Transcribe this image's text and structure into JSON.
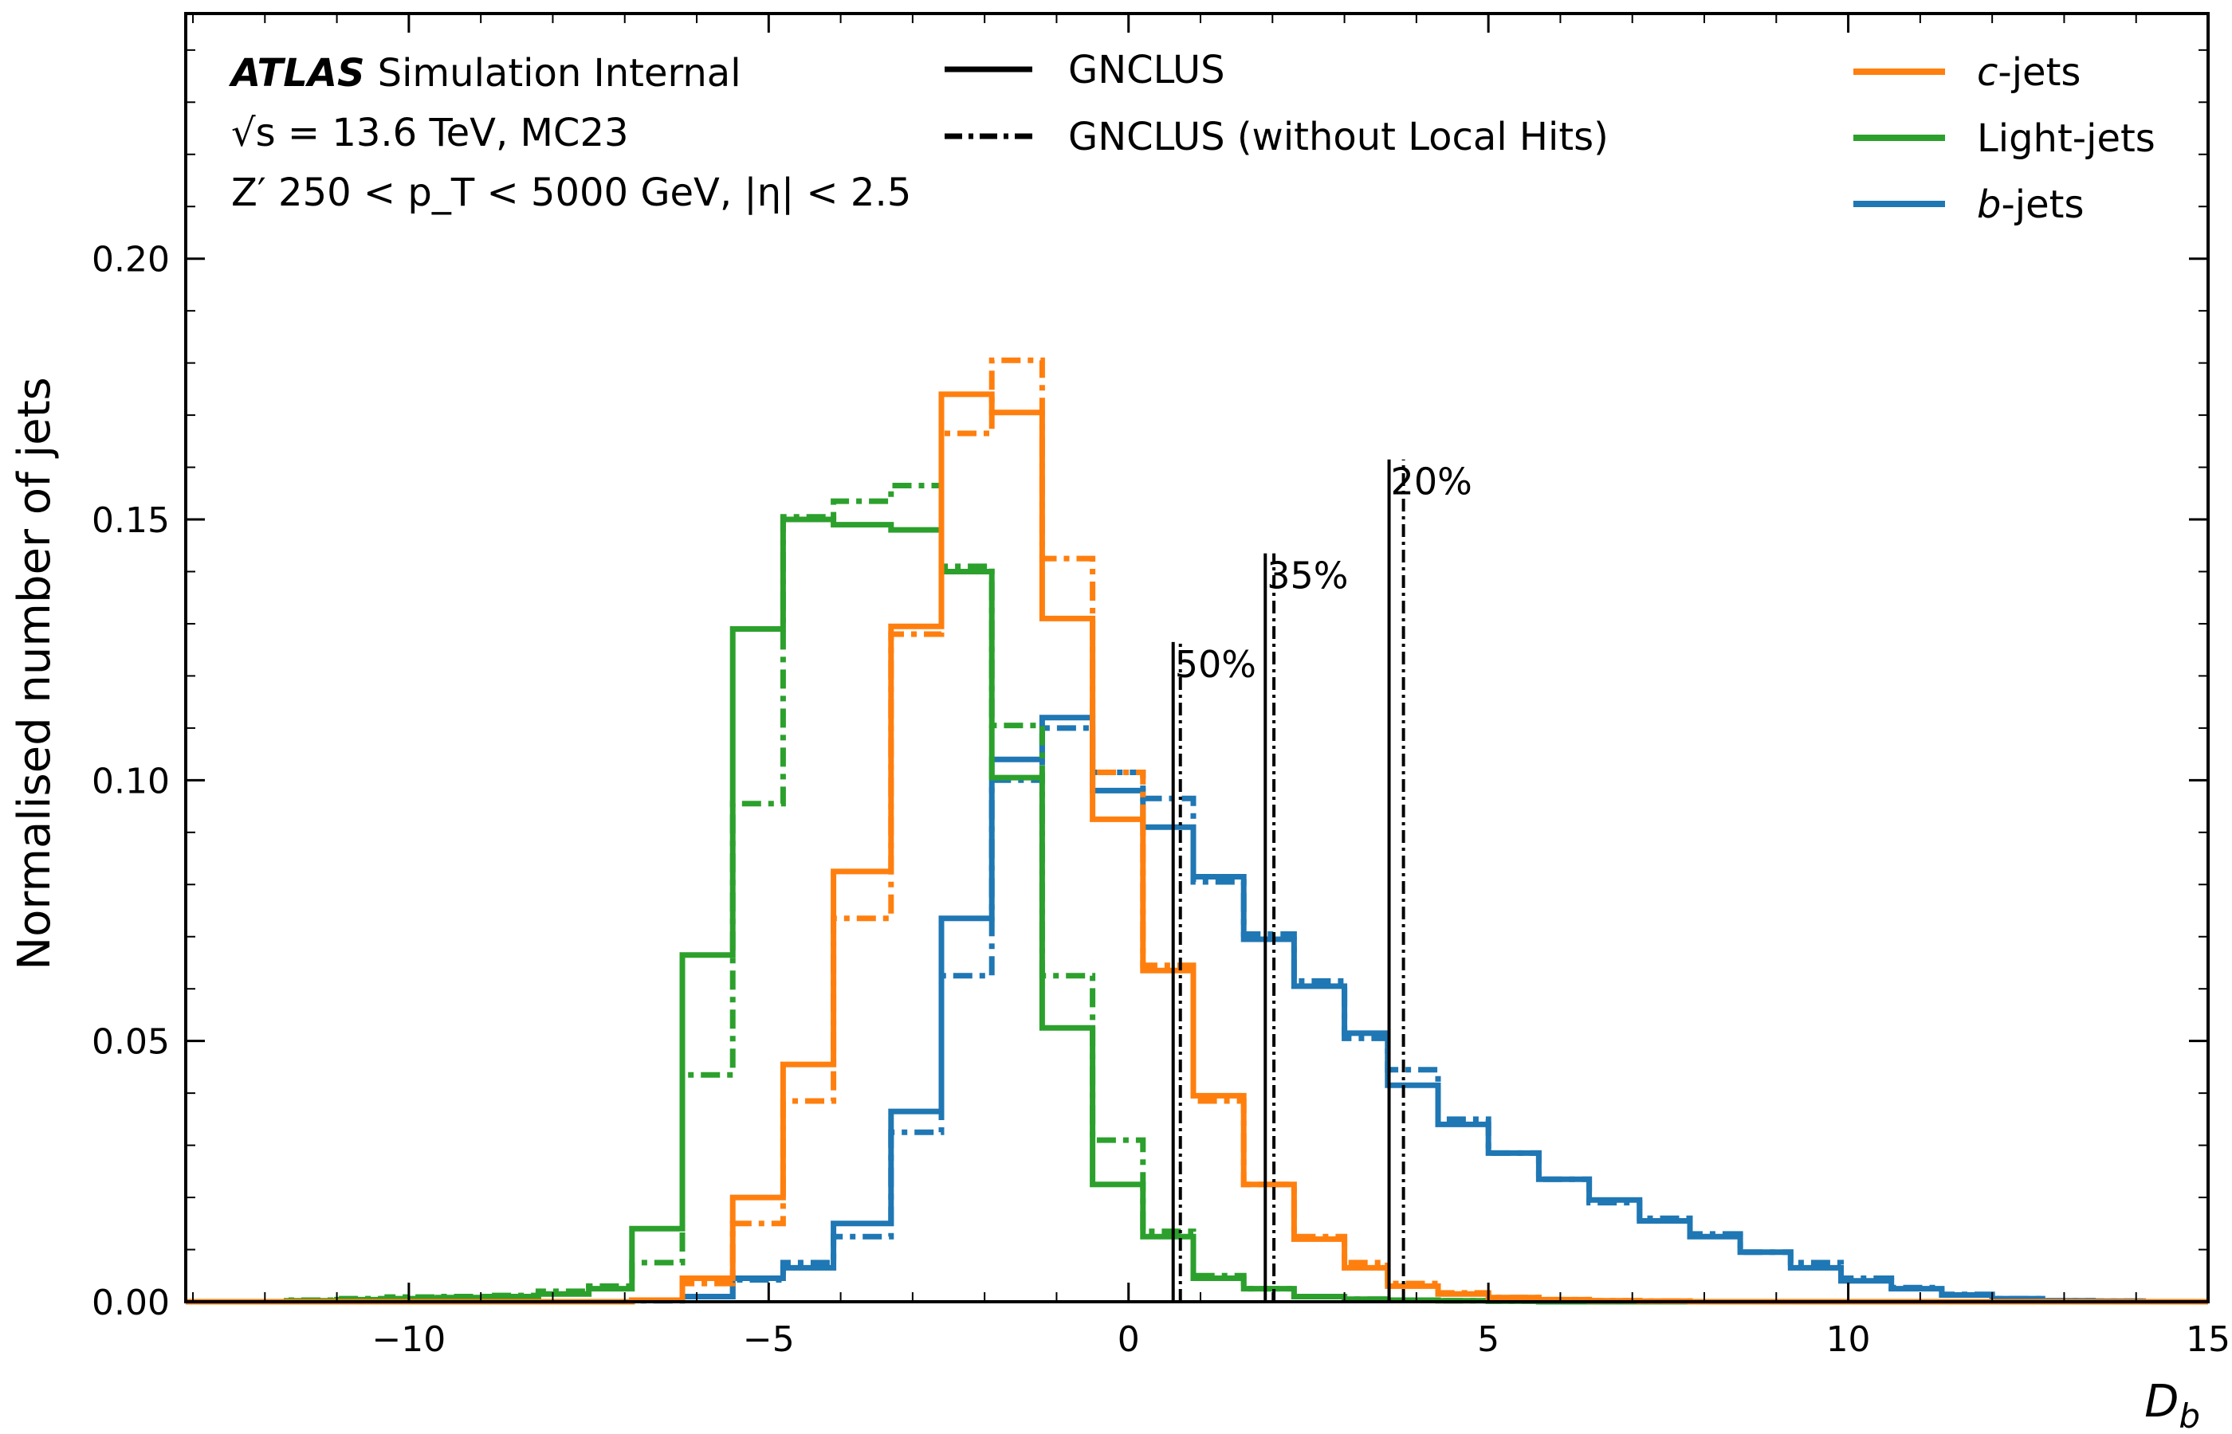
{
  "chart_data": {
    "type": "step-histogram",
    "xlabel_base": "D",
    "xlabel_sub": "b",
    "ylabel": "Normalised number of jets",
    "xlim": [
      -13.1,
      15
    ],
    "ylim": [
      0,
      0.247
    ],
    "xticks": [
      -10,
      -5,
      0,
      5,
      10,
      15
    ],
    "xtick_labels": [
      "−10",
      "−5",
      "0",
      "5",
      "10",
      "15"
    ],
    "yticks": [
      0.0,
      0.05,
      0.1,
      0.15,
      0.2
    ],
    "ytick_labels": [
      "0.00",
      "0.05",
      "0.10",
      "0.15",
      "0.20"
    ],
    "grid": false,
    "annotations": {
      "line1_bold": "ATLAS",
      "line1_rest": "Simulation Internal",
      "line2": "√s = 13.6 TeV, MC23",
      "line3": "Z′ 250 < p_T < 5000 GeV, |η| < 2.5"
    },
    "style_legend": {
      "solid": "GNCLUS",
      "dashdot": "GNCLUS (without Local Hits)"
    },
    "class_legend": [
      {
        "italic": "c",
        "rest": "-jets",
        "color": "#ff7f0e"
      },
      {
        "italic": "",
        "rest": "Light-jets",
        "color": "#2ca02c"
      },
      {
        "italic": "b",
        "rest": "-jets",
        "color": "#1f77b4"
      }
    ],
    "bin_edges": [
      -13.1,
      -12.4,
      -11.7,
      -11.0,
      -10.3,
      -9.6,
      -8.9,
      -8.2,
      -7.5,
      -6.9,
      -6.2,
      -5.5,
      -4.8,
      -4.1,
      -3.3,
      -2.6,
      -1.9,
      -1.2,
      -0.5,
      0.2,
      0.9,
      1.6,
      2.3,
      3.0,
      3.6,
      4.3,
      5.0,
      5.7,
      6.4,
      7.1,
      7.8,
      8.5,
      9.2,
      9.9,
      10.6,
      11.3,
      12.0,
      12.7,
      13.4,
      14.1,
      15.0
    ],
    "series": [
      {
        "name": "b-jets",
        "color": "#1f77b4",
        "style": "solid",
        "values": [
          0,
          0,
          0,
          0,
          0,
          0,
          0,
          0,
          0,
          0.0003,
          0.001,
          0.0045,
          0.0065,
          0.015,
          0.0365,
          0.0735,
          0.104,
          0.112,
          0.098,
          0.091,
          0.0815,
          0.0695,
          0.0605,
          0.0515,
          0.0415,
          0.034,
          0.0285,
          0.0235,
          0.0195,
          0.0155,
          0.0125,
          0.0095,
          0.0065,
          0.004,
          0.0025,
          0.0013,
          0.0006,
          0.0002,
          0.0001,
          0
        ]
      },
      {
        "name": "b-jets (without Local Hits)",
        "color": "#1f77b4",
        "style": "dashdot",
        "values": [
          0,
          0,
          0,
          0,
          0,
          0,
          0,
          0,
          0,
          0.0002,
          0.001,
          0.0042,
          0.0075,
          0.0125,
          0.0325,
          0.0625,
          0.1,
          0.11,
          0.1015,
          0.0965,
          0.0805,
          0.0705,
          0.0615,
          0.0505,
          0.0445,
          0.035,
          0.0285,
          0.0235,
          0.019,
          0.016,
          0.013,
          0.0095,
          0.0075,
          0.0045,
          0.0027,
          0.0014,
          0.0006,
          0.0002,
          0.0001,
          0
        ]
      },
      {
        "name": "Light-jets",
        "color": "#2ca02c",
        "style": "solid",
        "values": [
          0,
          0,
          0.0002,
          0.0004,
          0.0006,
          0.0008,
          0.001,
          0.0015,
          0.0025,
          0.014,
          0.0665,
          0.129,
          0.15,
          0.149,
          0.148,
          0.14,
          0.1005,
          0.0525,
          0.0225,
          0.0125,
          0.0045,
          0.0025,
          0.001,
          0.0005,
          0.0003,
          0.0002,
          0.0001,
          0,
          0,
          0,
          0,
          0,
          0,
          0,
          0,
          0,
          0,
          0,
          0,
          0
        ]
      },
      {
        "name": "Light-jets (without Local Hits)",
        "color": "#2ca02c",
        "style": "dashdot",
        "values": [
          0,
          0,
          0.0003,
          0.0006,
          0.0009,
          0.001,
          0.0012,
          0.002,
          0.003,
          0.0075,
          0.0435,
          0.0955,
          0.1505,
          0.1535,
          0.1565,
          0.141,
          0.1105,
          0.0625,
          0.031,
          0.0135,
          0.005,
          0.0025,
          0.001,
          0.0005,
          0.0003,
          0.0002,
          0.0001,
          0,
          0,
          0,
          0,
          0,
          0,
          0,
          0,
          0,
          0,
          0,
          0,
          0
        ]
      },
      {
        "name": "c-jets",
        "color": "#ff7f0e",
        "style": "solid",
        "values": [
          0,
          0,
          0,
          0,
          0,
          0,
          0,
          0,
          0,
          0.0003,
          0.0045,
          0.02,
          0.0455,
          0.0825,
          0.1295,
          0.174,
          0.1705,
          0.131,
          0.0925,
          0.0635,
          0.0395,
          0.0225,
          0.012,
          0.0065,
          0.003,
          0.0015,
          0.0008,
          0.0004,
          0.0002,
          0.0001,
          0,
          0,
          0,
          0,
          0,
          0,
          0,
          0,
          0,
          0
        ]
      },
      {
        "name": "c-jets (without Local Hits)",
        "color": "#ff7f0e",
        "style": "dashdot",
        "values": [
          0,
          0,
          0,
          0,
          0,
          0,
          0,
          0,
          0,
          0.0003,
          0.0035,
          0.015,
          0.0385,
          0.0735,
          0.128,
          0.1665,
          0.1805,
          0.1425,
          0.1015,
          0.0645,
          0.0385,
          0.0225,
          0.0125,
          0.0075,
          0.0035,
          0.0017,
          0.0008,
          0.0004,
          0.0002,
          0.0001,
          0,
          0,
          0,
          0,
          0,
          0,
          0,
          0,
          0,
          0
        ]
      }
    ],
    "working_points": [
      {
        "label": "50%",
        "x_solid": 0.62,
        "x_dashdot": 0.72,
        "height": 0.1265
      },
      {
        "label": "35%",
        "x_solid": 1.9,
        "x_dashdot": 2.02,
        "height": 0.1435
      },
      {
        "label": "20%",
        "x_solid": 3.62,
        "x_dashdot": 3.82,
        "height": 0.1615
      }
    ]
  }
}
